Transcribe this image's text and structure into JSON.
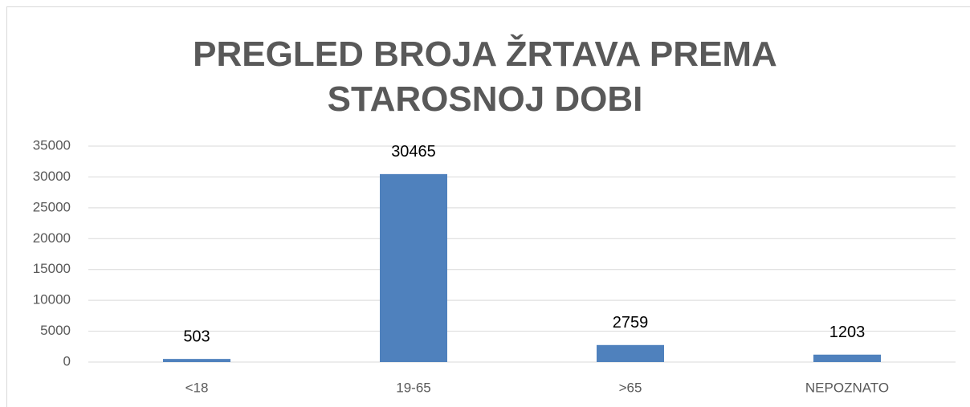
{
  "chart_data": {
    "type": "bar",
    "title": "PREGLED BROJA ŽRTAVA PREMA STAROSNOJ DOBI",
    "categories": [
      "<18",
      "19-65",
      ">65",
      "NEPOZNATO"
    ],
    "values": [
      503,
      30465,
      2759,
      1203
    ],
    "color": "#4f81bd",
    "ylim": [
      0,
      35000
    ],
    "yticks": [
      0,
      5000,
      10000,
      15000,
      20000,
      25000,
      30000,
      35000
    ],
    "grid": true
  }
}
